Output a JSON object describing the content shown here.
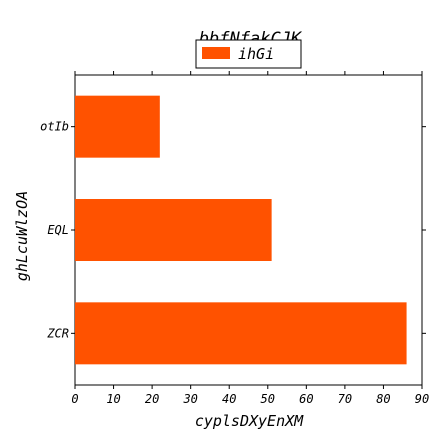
{
  "chart_data": {
    "type": "bar",
    "orientation": "horizontal",
    "title": "bbfNfakCJK",
    "xlabel": "cyplsDXyEnXM",
    "ylabel": "ghLcuWlzOA",
    "categories": [
      "ZCR",
      "EQL",
      "otIb"
    ],
    "series": [
      {
        "name": "ihGi",
        "values": [
          86,
          51,
          22
        ],
        "color": "#ff5200"
      }
    ],
    "xlim": [
      0,
      90
    ],
    "xticks": [
      0,
      10,
      20,
      30,
      40,
      50,
      60,
      70,
      80,
      90
    ],
    "grid": false,
    "legend_position": "top-center"
  }
}
